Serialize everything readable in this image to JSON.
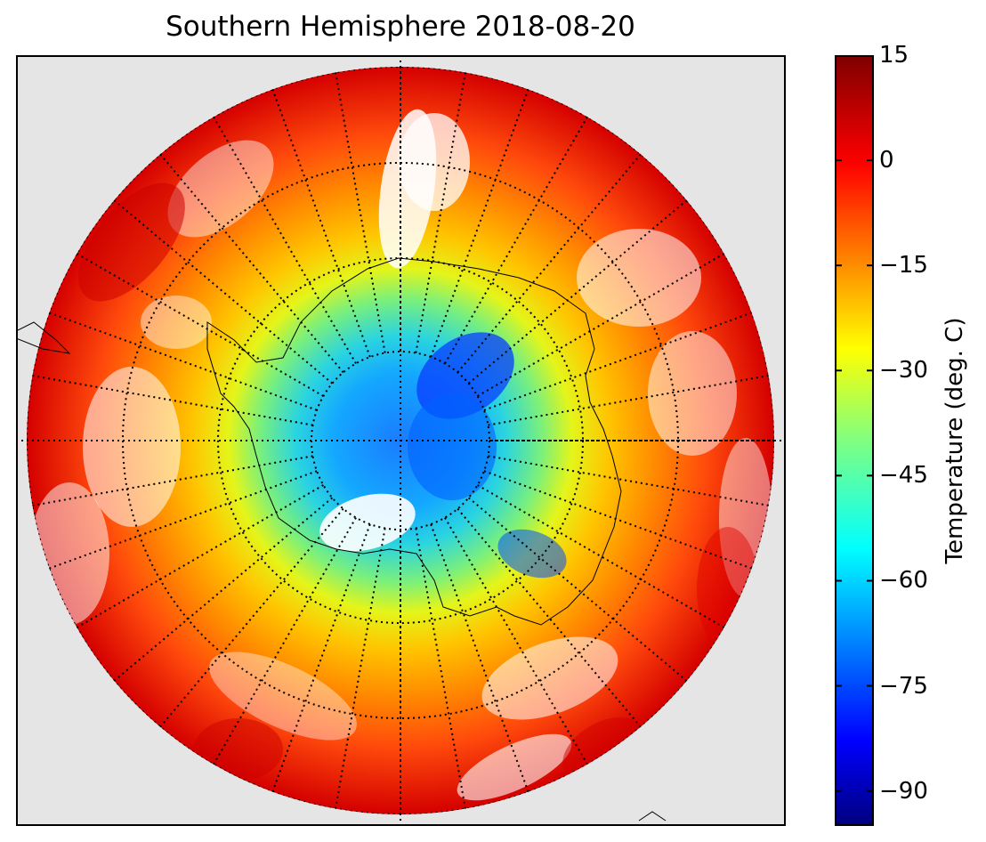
{
  "title": "Southern Hemisphere 2018-08-20",
  "colorbar": {
    "label": "Temperature (deg. C)",
    "min": -95,
    "max": 15,
    "ticks": [
      "15",
      "0",
      "−15",
      "−30",
      "−45",
      "−60",
      "−75",
      "−90"
    ],
    "tick_values": [
      15,
      0,
      -15,
      -30,
      -45,
      -60,
      -75,
      -90
    ],
    "colormap": "jet"
  },
  "map": {
    "projection": "south-polar-stereographic",
    "background_color": "#e5e5e5",
    "graticule": "dotted",
    "meridian_spacing_deg": 10,
    "parallel_count": 4
  }
}
